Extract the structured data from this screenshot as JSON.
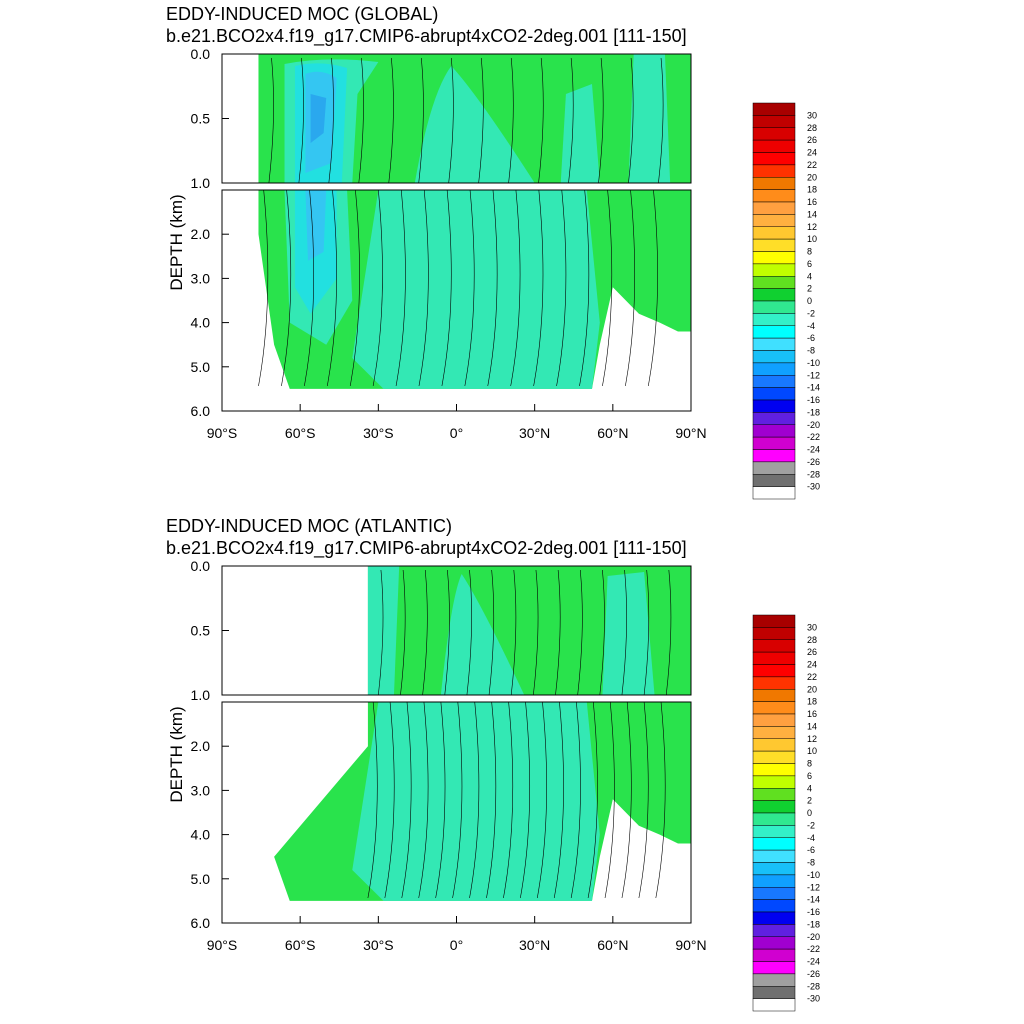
{
  "colors": {
    "green": "#29e34c",
    "teal": "#33e8b4",
    "cyan": "#22e0e0",
    "lightblue": "#34c6f2",
    "blue": "#2aa8ee",
    "contour": "#000000"
  },
  "colorbar": {
    "labels": [
      "30",
      "28",
      "26",
      "24",
      "22",
      "20",
      "18",
      "16",
      "14",
      "12",
      "10",
      "8",
      "6",
      "4",
      "2",
      "0",
      "-2",
      "-4",
      "-6",
      "-8",
      "-10",
      "-12",
      "-14",
      "-16",
      "-18",
      "-20",
      "-22",
      "-24",
      "-26",
      "-28",
      "-30"
    ],
    "colors": [
      "#a80000",
      "#c00000",
      "#d80000",
      "#ee0000",
      "#ff0000",
      "#ff3300",
      "#f07800",
      "#ff8c1a",
      "#ffa040",
      "#ffb040",
      "#ffc830",
      "#ffde28",
      "#ffff00",
      "#c0ff00",
      "#60e020",
      "#10d030",
      "#30e890",
      "#33f0c8",
      "#00ffff",
      "#40e0ff",
      "#18c0f8",
      "#10a0ff",
      "#1878ff",
      "#0048ff",
      "#0000f0",
      "#6020e0",
      "#a000d0",
      "#d000d0",
      "#ff00ff",
      "#a0a0a0",
      "#707070",
      "#ffffff"
    ]
  },
  "chart_data": [
    {
      "type": "heatmap",
      "title": "EDDY-INDUCED MOC (GLOBAL)",
      "subtitle": "b.e21.BCO2x4.f19_g17.CMIP6-abrupt4xCO2-2deg.001 [111-150]",
      "ylabel": "DEPTH (km)",
      "xticks": [
        "90°S",
        "60°S",
        "30°S",
        "0°",
        "30°N",
        "60°N",
        "90°N"
      ],
      "xlim": [
        -90,
        90
      ],
      "yticks_upper": [
        "0.0",
        "0.5",
        "1.0"
      ],
      "yticks_lower": [
        "2.0",
        "3.0",
        "4.0",
        "5.0",
        "6.0"
      ],
      "ylim_upper": [
        0,
        1.0
      ],
      "ylim_lower": [
        1.0,
        6.0
      ],
      "colorbar_range": [
        -30,
        30
      ],
      "colorbar_interval": 2,
      "grid": false
    },
    {
      "type": "heatmap",
      "title": "EDDY-INDUCED MOC (ATLANTIC)",
      "subtitle": "b.e21.BCO2x4.f19_g17.CMIP6-abrupt4xCO2-2deg.001 [111-150]",
      "ylabel": "DEPTH (km)",
      "xticks": [
        "90°S",
        "60°S",
        "30°S",
        "0°",
        "30°N",
        "60°N",
        "90°N"
      ],
      "xlim": [
        -90,
        90
      ],
      "yticks_upper": [
        "0.0",
        "0.5",
        "1.0"
      ],
      "yticks_lower": [
        "2.0",
        "3.0",
        "4.0",
        "5.0",
        "6.0"
      ],
      "ylim_upper": [
        0,
        1.0
      ],
      "ylim_lower": [
        1.0,
        6.0
      ],
      "colorbar_range": [
        -30,
        30
      ],
      "colorbar_interval": 2,
      "grid": false
    }
  ]
}
